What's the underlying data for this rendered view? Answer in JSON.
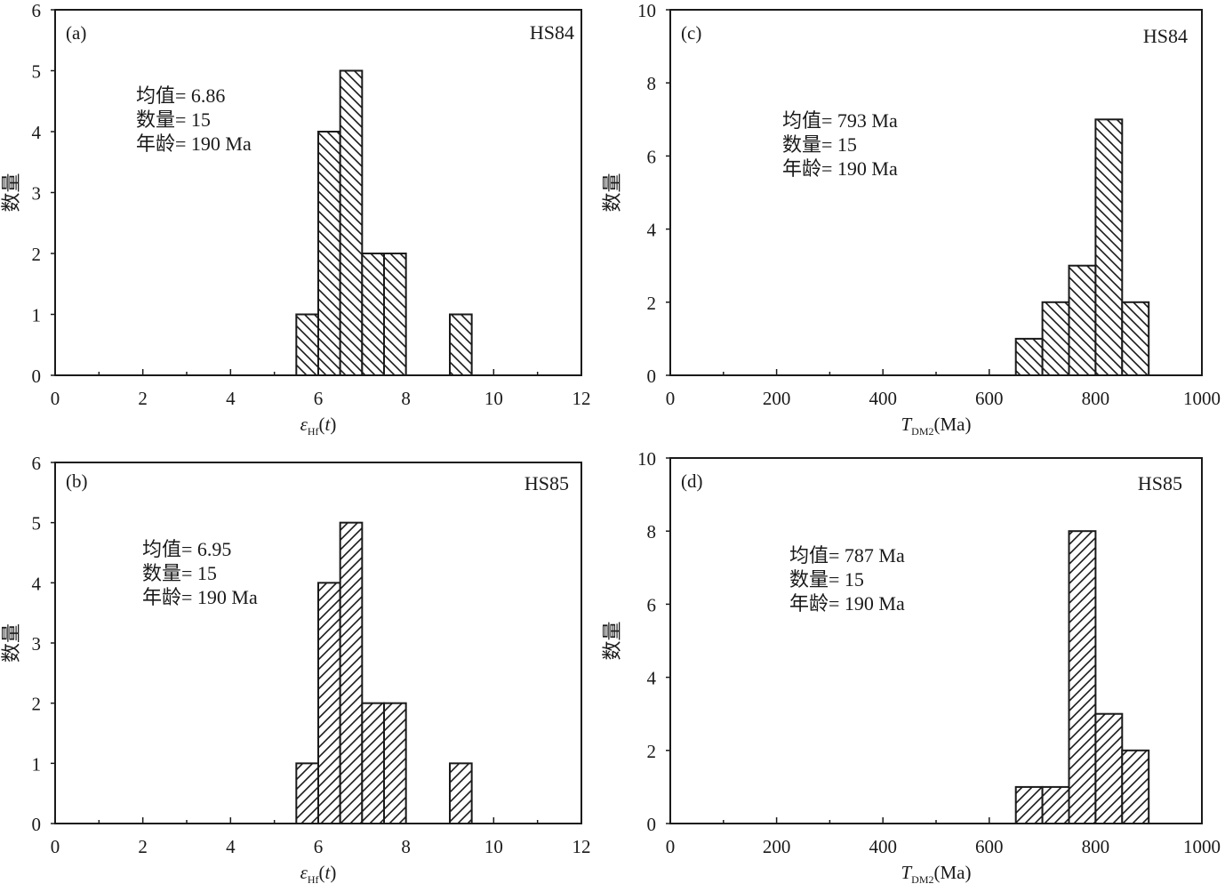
{
  "chart_data": [
    {
      "type": "bar",
      "panel_label": "(a)",
      "sample": "HS84",
      "stats": [
        "均值= 6.86",
        "数量= 15",
        "年龄= 190 Ma"
      ],
      "ylabel": "数量",
      "xlabel": {
        "main": "ε",
        "sub": "Hf",
        "suffix": "(t)"
      },
      "xlim": [
        0,
        12
      ],
      "ylim": [
        0,
        6
      ],
      "xticks": [
        0,
        2,
        4,
        6,
        8,
        10,
        12
      ],
      "yticks": [
        0,
        1,
        2,
        3,
        4,
        5,
        6
      ],
      "bin_width": 0.5,
      "hatch": "backslash",
      "bins": [
        {
          "x0": 5.5,
          "x1": 6.0,
          "count": 1
        },
        {
          "x0": 6.0,
          "x1": 6.5,
          "count": 4
        },
        {
          "x0": 6.5,
          "x1": 7.0,
          "count": 5
        },
        {
          "x0": 7.0,
          "x1": 7.5,
          "count": 2
        },
        {
          "x0": 7.5,
          "x1": 8.0,
          "count": 2
        },
        {
          "x0": 9.0,
          "x1": 9.5,
          "count": 1
        }
      ]
    },
    {
      "type": "bar",
      "panel_label": "(b)",
      "sample": "HS85",
      "stats": [
        "均值= 6.95",
        "数量= 15",
        "年龄= 190 Ma"
      ],
      "ylabel": "数量",
      "xlabel": {
        "main": "ε",
        "sub": "Hf",
        "suffix": "(t)"
      },
      "xlim": [
        0,
        12
      ],
      "ylim": [
        0,
        6
      ],
      "xticks": [
        0,
        2,
        4,
        6,
        8,
        10,
        12
      ],
      "yticks": [
        0,
        1,
        2,
        3,
        4,
        5,
        6
      ],
      "bin_width": 0.5,
      "hatch": "slash",
      "bins": [
        {
          "x0": 5.5,
          "x1": 6.0,
          "count": 1
        },
        {
          "x0": 6.0,
          "x1": 6.5,
          "count": 4
        },
        {
          "x0": 6.5,
          "x1": 7.0,
          "count": 5
        },
        {
          "x0": 7.0,
          "x1": 7.5,
          "count": 2
        },
        {
          "x0": 7.5,
          "x1": 8.0,
          "count": 2
        },
        {
          "x0": 9.0,
          "x1": 9.5,
          "count": 1
        }
      ]
    },
    {
      "type": "bar",
      "panel_label": "(c)",
      "sample": "HS84",
      "stats": [
        "均值= 793 Ma",
        "数量= 15",
        "年龄= 190 Ma"
      ],
      "ylabel": "数量",
      "xlabel": {
        "main": "T",
        "sub": "DM2",
        "suffix": "(Ma)"
      },
      "xlim": [
        0,
        1000
      ],
      "ylim": [
        0,
        10
      ],
      "xticks": [
        0,
        200,
        400,
        600,
        800,
        1000
      ],
      "yticks": [
        0,
        2,
        4,
        6,
        8,
        10
      ],
      "bin_width": 50,
      "hatch": "backslash",
      "bins": [
        {
          "x0": 650,
          "x1": 700,
          "count": 1
        },
        {
          "x0": 700,
          "x1": 750,
          "count": 2
        },
        {
          "x0": 750,
          "x1": 800,
          "count": 3
        },
        {
          "x0": 800,
          "x1": 850,
          "count": 7
        },
        {
          "x0": 850,
          "x1": 900,
          "count": 2
        }
      ]
    },
    {
      "type": "bar",
      "panel_label": "(d)",
      "sample": "HS85",
      "stats": [
        "均值= 787 Ma",
        "数量= 15",
        "年龄= 190 Ma"
      ],
      "ylabel": "数量",
      "xlabel": {
        "main": "T",
        "sub": "DM2",
        "suffix": "(Ma)"
      },
      "xlim": [
        0,
        1000
      ],
      "ylim": [
        0,
        10
      ],
      "xticks": [
        0,
        200,
        400,
        600,
        800,
        1000
      ],
      "yticks": [
        0,
        2,
        4,
        6,
        8,
        10
      ],
      "bin_width": 50,
      "hatch": "slash",
      "bins": [
        {
          "x0": 650,
          "x1": 700,
          "count": 1
        },
        {
          "x0": 700,
          "x1": 750,
          "count": 1
        },
        {
          "x0": 750,
          "x1": 800,
          "count": 8
        },
        {
          "x0": 800,
          "x1": 850,
          "count": 3
        },
        {
          "x0": 850,
          "x1": 900,
          "count": 2
        }
      ]
    }
  ]
}
